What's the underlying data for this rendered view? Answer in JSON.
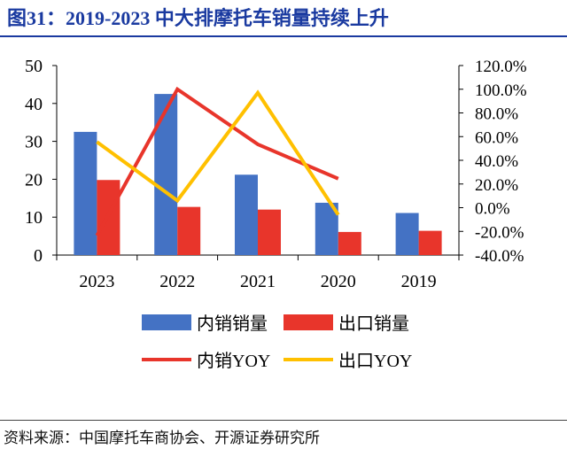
{
  "figure": {
    "title": "图31：2019-2023 中大排摩托车销量持续上升",
    "source": "资料来源：中国摩托车商协会、开源证券研究所"
  },
  "chart_data": {
    "type": "bar",
    "categories": [
      "2023",
      "2022",
      "2021",
      "2020",
      "2019"
    ],
    "series": [
      {
        "name": "内销销量",
        "kind": "bar",
        "axis": "left",
        "color": "#4472c4",
        "values": [
          32.5,
          42.5,
          21.2,
          13.8,
          11.1
        ]
      },
      {
        "name": "出口销量",
        "kind": "bar",
        "axis": "left",
        "color": "#e8352b",
        "values": [
          19.8,
          12.7,
          12.0,
          6.1,
          6.4
        ]
      },
      {
        "name": "内销YOY",
        "kind": "line",
        "axis": "right",
        "color": "#e8352b",
        "values": [
          -23.5,
          100.0,
          53.5,
          24.5,
          null
        ]
      },
      {
        "name": "出口YOY",
        "kind": "line",
        "axis": "right",
        "color": "#ffc000",
        "values": [
          55.5,
          6.0,
          97.0,
          -6.0,
          null
        ]
      }
    ],
    "y_left": {
      "min": 0,
      "max": 50,
      "ticks": [
        "0",
        "10",
        "20",
        "30",
        "40",
        "50"
      ]
    },
    "y_right": {
      "min": -40,
      "max": 120,
      "ticks": [
        "-40.0%",
        "-20.0%",
        "0.0%",
        "20.0%",
        "40.0%",
        "60.0%",
        "80.0%",
        "100.0%",
        "120.0%"
      ]
    },
    "legend": {
      "position": "bottom",
      "items": [
        "内销销量",
        "出口销量",
        "内销YOY",
        "出口YOY"
      ]
    }
  }
}
